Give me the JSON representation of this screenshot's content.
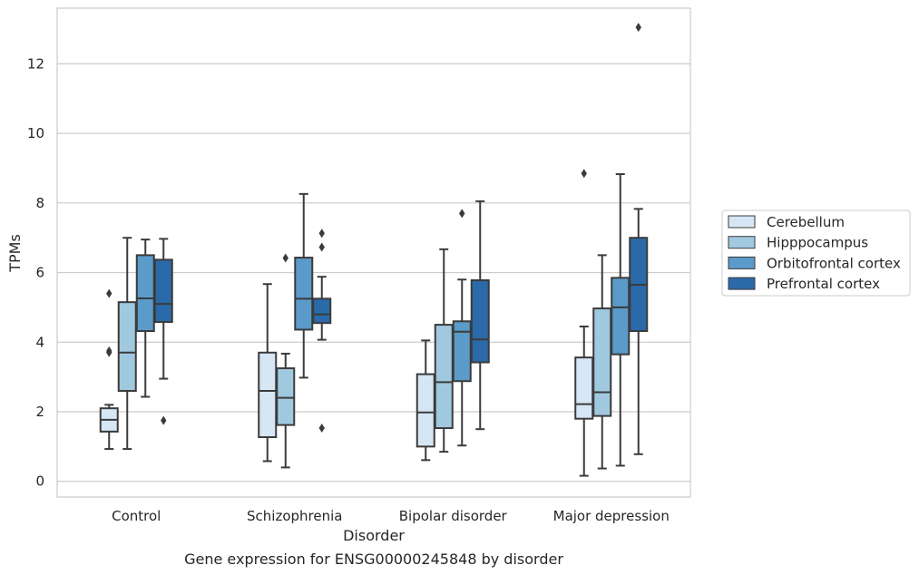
{
  "caption": "Gene expression for ENSG00000245848 by disorder",
  "chart_data": {
    "type": "box",
    "xlabel": "Disorder",
    "ylabel": "TPMs",
    "ylim": [
      -0.45,
      13.6
    ],
    "yticks": [
      0,
      2,
      4,
      6,
      8,
      10,
      12
    ],
    "grid": true,
    "legend_position": "right",
    "categories": [
      "Control",
      "Schizophrenia",
      "Bipolar disorder",
      "Major depression"
    ],
    "series": [
      {
        "name": "Cerebellum",
        "color": "#d6e6f4",
        "boxes": [
          {
            "whisker_low": 0.93,
            "q1": 1.43,
            "median": 1.77,
            "q3": 2.1,
            "whisker_high": 2.2,
            "outliers": [
              3.7,
              3.75,
              5.4
            ]
          },
          {
            "whisker_low": 0.58,
            "q1": 1.27,
            "median": 2.6,
            "q3": 3.7,
            "whisker_high": 5.67,
            "outliers": []
          },
          {
            "whisker_low": 0.61,
            "q1": 1.0,
            "median": 1.98,
            "q3": 3.08,
            "whisker_high": 4.05,
            "outliers": []
          },
          {
            "whisker_low": 0.16,
            "q1": 1.8,
            "median": 2.22,
            "q3": 3.56,
            "whisker_high": 4.45,
            "outliers": [
              8.85
            ]
          }
        ]
      },
      {
        "name": "Hipppocampus",
        "color": "#a0c9e0",
        "boxes": [
          {
            "whisker_low": 0.93,
            "q1": 2.6,
            "median": 3.7,
            "q3": 5.15,
            "whisker_high": 7.0,
            "outliers": []
          },
          {
            "whisker_low": 0.4,
            "q1": 1.62,
            "median": 2.4,
            "q3": 3.25,
            "whisker_high": 3.67,
            "outliers": [
              6.42
            ]
          },
          {
            "whisker_low": 0.85,
            "q1": 1.53,
            "median": 2.85,
            "q3": 4.5,
            "whisker_high": 6.67,
            "outliers": []
          },
          {
            "whisker_low": 0.37,
            "q1": 1.88,
            "median": 2.56,
            "q3": 4.97,
            "whisker_high": 6.5,
            "outliers": []
          }
        ]
      },
      {
        "name": "Orbitofrontal cortex",
        "color": "#5a9bc9",
        "boxes": [
          {
            "whisker_low": 2.43,
            "q1": 4.32,
            "median": 5.26,
            "q3": 6.5,
            "whisker_high": 6.95,
            "outliers": []
          },
          {
            "whisker_low": 2.98,
            "q1": 4.36,
            "median": 5.25,
            "q3": 6.43,
            "whisker_high": 8.26,
            "outliers": []
          },
          {
            "whisker_low": 1.03,
            "q1": 2.88,
            "median": 4.3,
            "q3": 4.6,
            "whisker_high": 5.8,
            "outliers": [
              7.7
            ]
          },
          {
            "whisker_low": 0.45,
            "q1": 3.65,
            "median": 5.0,
            "q3": 5.85,
            "whisker_high": 8.83,
            "outliers": []
          }
        ]
      },
      {
        "name": "Prefrontal cortex",
        "color": "#2b6aa8",
        "boxes": [
          {
            "whisker_low": 2.95,
            "q1": 4.58,
            "median": 5.1,
            "q3": 6.37,
            "whisker_high": 6.97,
            "outliers": [
              1.75
            ]
          },
          {
            "whisker_low": 4.07,
            "q1": 4.55,
            "median": 4.8,
            "q3": 5.25,
            "whisker_high": 5.88,
            "outliers": [
              1.53,
              6.73,
              7.13
            ]
          },
          {
            "whisker_low": 1.5,
            "q1": 3.42,
            "median": 4.08,
            "q3": 5.78,
            "whisker_high": 8.05,
            "outliers": []
          },
          {
            "whisker_low": 0.78,
            "q1": 4.32,
            "median": 5.65,
            "q3": 7.0,
            "whisker_high": 7.83,
            "outliers": [
              13.05
            ]
          }
        ]
      }
    ]
  }
}
